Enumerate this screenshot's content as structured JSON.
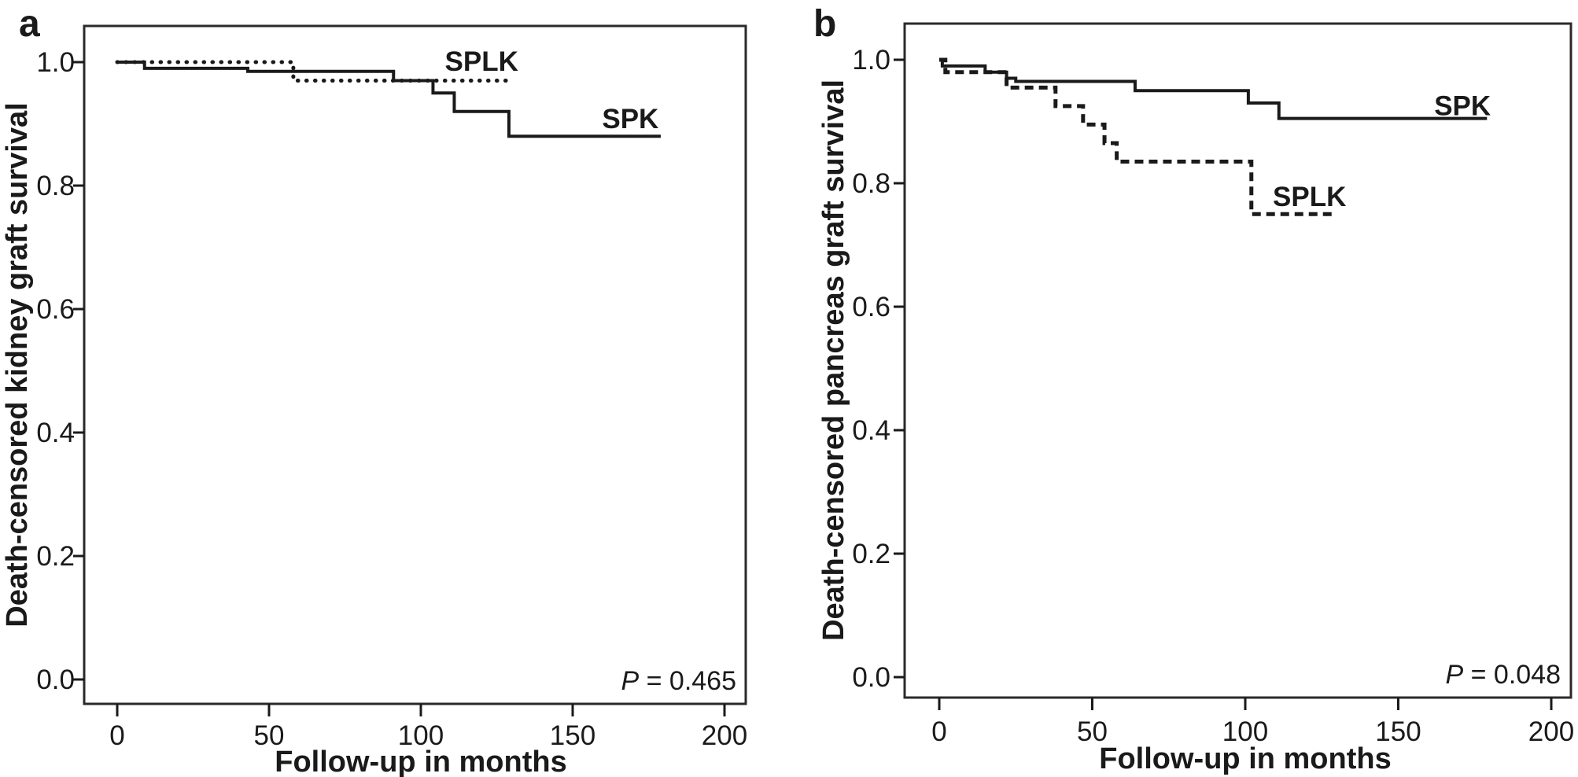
{
  "figure": {
    "background": "#ffffff",
    "ink_color": "#1a1a1a",
    "frame_color": "#2a2a2a"
  },
  "chart_data": [
    {
      "type": "line",
      "subtype": "kaplan-meier-step",
      "panel_letter": "a",
      "xlabel": "Follow-up in months",
      "ylabel": "Death-censored kidney graft survival",
      "xticks": [
        0,
        50,
        100,
        150,
        200
      ],
      "xtick_labels": [
        "0",
        "50",
        "100",
        "150",
        "200"
      ],
      "yticks": [
        0.0,
        0.2,
        0.4,
        0.6,
        0.8,
        1.0
      ],
      "ytick_labels": [
        "0.0",
        "0.2",
        "0.4",
        "0.6",
        "0.8",
        "1.0"
      ],
      "xlim": [
        0,
        200
      ],
      "ylim": [
        0.0,
        1.0
      ],
      "grid": false,
      "legend_position": "inline-labels",
      "p_annotation": {
        "symbol": "P",
        "rest": " = 0.465"
      },
      "series": [
        {
          "name": "SPK",
          "style": "solid",
          "label_pos": [
            169,
            0.893
          ],
          "steps": [
            [
              0,
              1.0
            ],
            [
              9,
              0.99
            ],
            [
              43,
              0.985
            ],
            [
              91,
              0.97
            ],
            [
              104,
              0.95
            ],
            [
              111,
              0.92
            ],
            [
              129,
              0.88
            ],
            [
              179,
              0.88
            ]
          ]
        },
        {
          "name": "SPLK",
          "style": "dotted",
          "label_pos": [
            120,
            0.986
          ],
          "steps": [
            [
              0,
              1.0
            ],
            [
              58,
              0.97
            ],
            [
              129,
              0.97
            ]
          ]
        }
      ]
    },
    {
      "type": "line",
      "subtype": "kaplan-meier-step",
      "panel_letter": "b",
      "xlabel": "Follow-up in months",
      "ylabel": "Death-censored pancreas graft survival",
      "xticks": [
        0,
        50,
        100,
        150,
        200
      ],
      "xtick_labels": [
        "0",
        "50",
        "100",
        "150",
        "200"
      ],
      "yticks": [
        0.0,
        0.2,
        0.4,
        0.6,
        0.8,
        1.0
      ],
      "ytick_labels": [
        "0.0",
        "0.2",
        "0.4",
        "0.6",
        "0.8",
        "1.0"
      ],
      "xlim": [
        0,
        200
      ],
      "ylim": [
        0.0,
        1.0
      ],
      "grid": false,
      "legend_position": "inline-labels",
      "p_annotation": {
        "symbol": "P",
        "rest": " = 0.048"
      },
      "series": [
        {
          "name": "SPK",
          "style": "solid",
          "label_pos": [
            171,
            0.91
          ],
          "steps": [
            [
              0,
              1.0
            ],
            [
              1,
              0.99
            ],
            [
              15,
              0.98
            ],
            [
              22,
              0.97
            ],
            [
              25,
              0.965
            ],
            [
              64,
              0.95
            ],
            [
              101,
              0.93
            ],
            [
              111,
              0.905
            ],
            [
              179,
              0.905
            ]
          ]
        },
        {
          "name": "SPLK",
          "style": "dashed",
          "label_pos": [
            121,
            0.763
          ],
          "steps": [
            [
              0,
              1.0
            ],
            [
              2,
              0.98
            ],
            [
              22,
              0.955
            ],
            [
              38,
              0.925
            ],
            [
              47,
              0.895
            ],
            [
              54,
              0.865
            ],
            [
              58,
              0.835
            ],
            [
              102,
              0.75
            ],
            [
              129,
              0.75
            ]
          ]
        }
      ]
    }
  ]
}
